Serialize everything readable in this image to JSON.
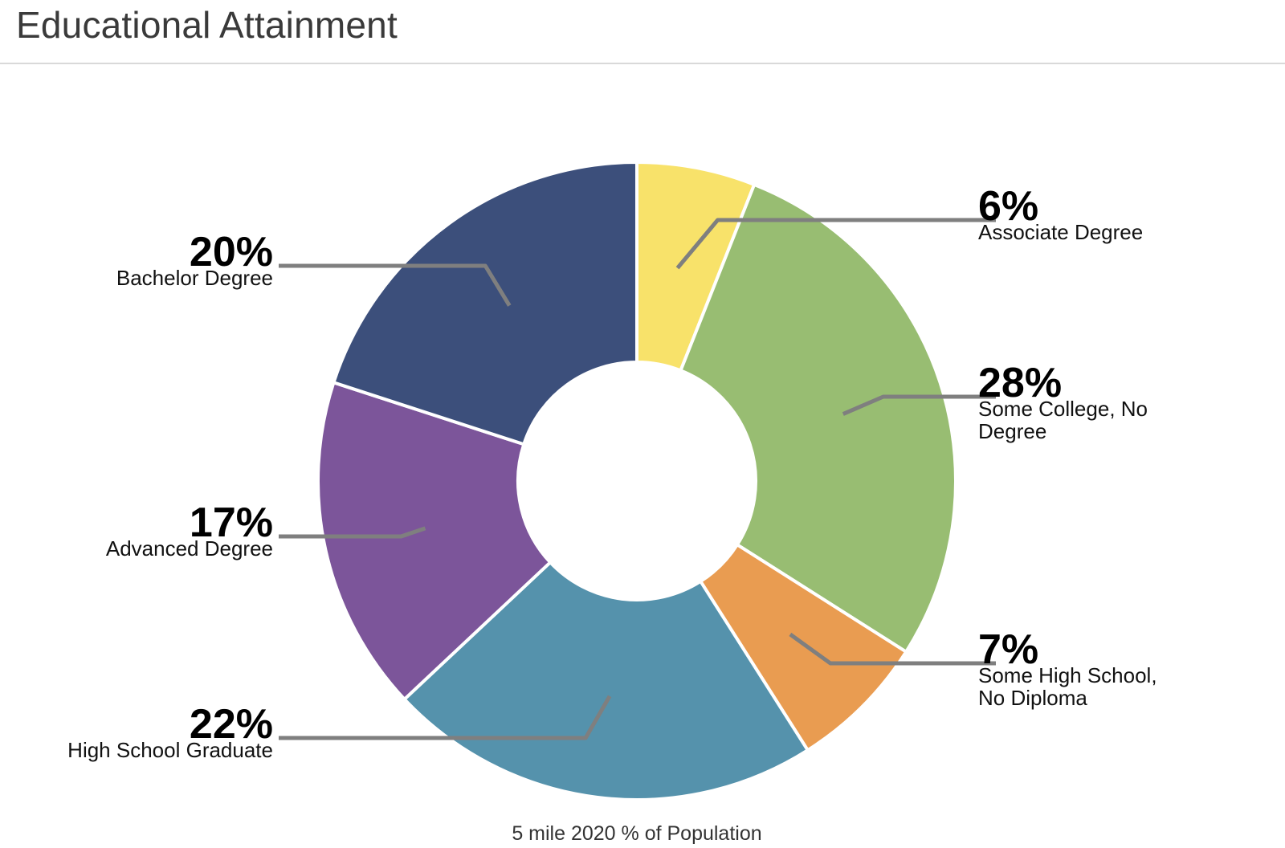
{
  "page": {
    "title": "Educational Attainment"
  },
  "chart_data": {
    "type": "pie",
    "variant": "donut",
    "caption": "5 mile 2020 % of Population",
    "slices": [
      {
        "label": "Associate Degree",
        "value": 6,
        "display": "6%",
        "label_lines": [
          "Associate Degree"
        ],
        "color": "#f8e26a",
        "side": "right"
      },
      {
        "label": "Some College, No Degree",
        "value": 28,
        "display": "28%",
        "label_lines": [
          "Some College, No",
          "Degree"
        ],
        "color": "#98bd72",
        "side": "right"
      },
      {
        "label": "Some High School, No Diploma",
        "value": 7,
        "display": "7%",
        "label_lines": [
          "Some High School,",
          "No Diploma"
        ],
        "color": "#e99c51",
        "side": "right"
      },
      {
        "label": "High School Graduate",
        "value": 22,
        "display": "22%",
        "label_lines": [
          "High School Graduate"
        ],
        "color": "#5592ac",
        "side": "left"
      },
      {
        "label": "Advanced Degree",
        "value": 17,
        "display": "17%",
        "label_lines": [
          "Advanced Degree"
        ],
        "color": "#7c559a",
        "side": "left"
      },
      {
        "label": "Bachelor Degree",
        "value": 20,
        "display": "20%",
        "label_lines": [
          "Bachelor Degree"
        ],
        "color": "#3c4f7b",
        "side": "left"
      }
    ]
  }
}
